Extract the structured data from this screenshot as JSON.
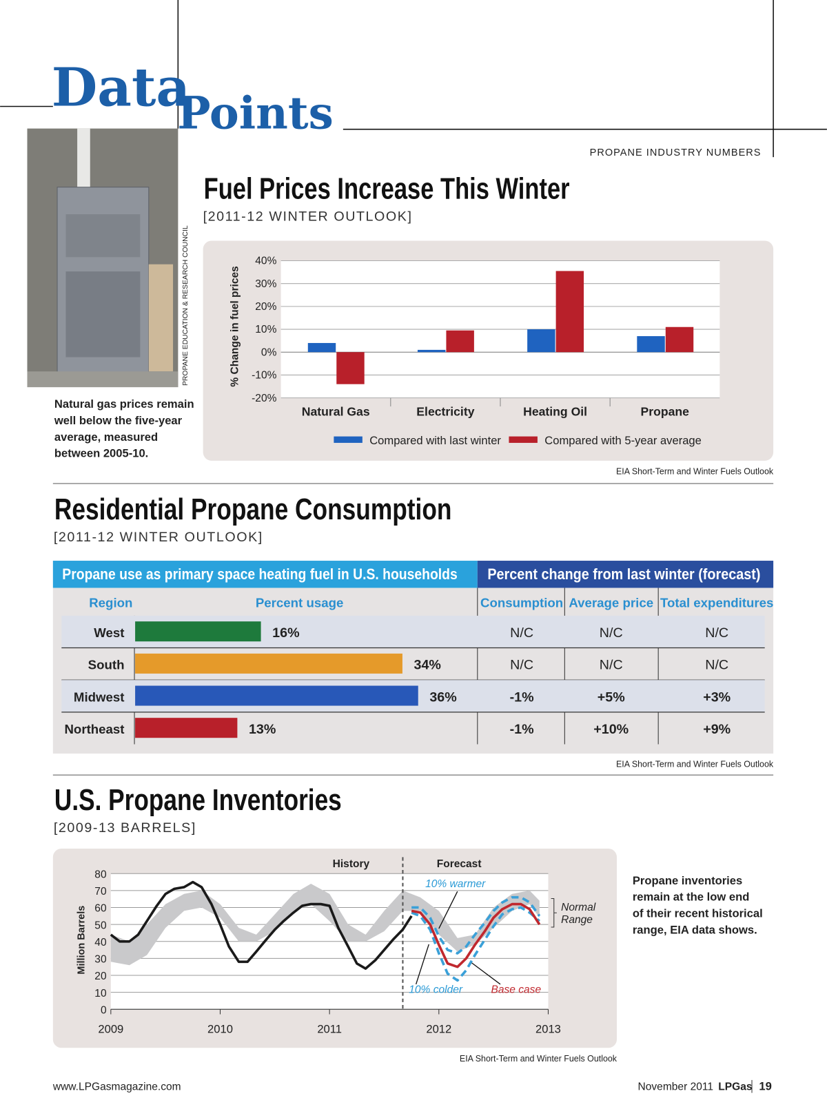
{
  "header": {
    "title_left": "Data",
    "title_right": "Points",
    "kicker": "PROPANE INDUSTRY NUMBERS"
  },
  "photo": {
    "credit": "PROPANE EDUCATION & RESEARCH COUNCIL",
    "caption": [
      "Natural gas prices remain",
      "well below the five-year",
      "average, measured",
      "between 2005-10."
    ]
  },
  "chart_data": [
    {
      "type": "bar",
      "title": "Fuel Prices Increase This Winter",
      "subtitle": "[2011-12 WINTER OUTLOOK]",
      "ylabel": "% Change in fuel prices",
      "categories": [
        "Natural Gas",
        "Electricity",
        "Heating Oil",
        "Propane"
      ],
      "series": [
        {
          "name": "Compared with last winter",
          "color": "#1f63c0",
          "values": [
            4,
            1,
            10,
            7
          ]
        },
        {
          "name": "Compared with 5-year average",
          "color": "#b8202a",
          "values": [
            -14,
            9.5,
            35.5,
            11
          ]
        }
      ],
      "ylim": [
        -20,
        40
      ],
      "yticks": [
        {
          "value": -20,
          "label": "-20%"
        },
        {
          "value": -10,
          "label": "-10%"
        },
        {
          "value": 0,
          "label": "0%"
        },
        {
          "value": 10,
          "label": "10%"
        },
        {
          "value": 20,
          "label": "20%"
        },
        {
          "value": 30,
          "label": "30%"
        },
        {
          "value": 40,
          "label": "40%"
        }
      ],
      "grid": true,
      "legend": "bottom",
      "source": "EIA Short-Term and Winter Fuels Outlook"
    },
    {
      "type": "line",
      "title": "U.S. Propane Inventories",
      "subtitle": "[2009-13 BARRELS]",
      "ylabel": "Million Barrels",
      "xlim": [
        2009,
        2013
      ],
      "xticks": [
        2009,
        2010,
        2011,
        2012,
        2013
      ],
      "ylim": [
        0,
        80
      ],
      "yticks": [
        0,
        10,
        20,
        30,
        40,
        50,
        60,
        70,
        80
      ],
      "grid": true,
      "divider_x": 2011.67,
      "annotations": {
        "history": "History",
        "forecast": "Forecast",
        "normal_range": [
          "Normal",
          "Range"
        ]
      },
      "band": {
        "name": "Normal Range",
        "color": "#c9c9cb",
        "x": [
          2009,
          2009.17,
          2009.33,
          2009.5,
          2009.67,
          2009.83,
          2010,
          2010.17,
          2010.33,
          2010.5,
          2010.67,
          2010.83,
          2011,
          2011.17,
          2011.33,
          2011.5,
          2011.67,
          2011.83,
          2012,
          2012.17,
          2012.33,
          2012.5,
          2012.67,
          2012.83,
          2012.92
        ],
        "lower": [
          28,
          26,
          32,
          48,
          58,
          60,
          54,
          40,
          40,
          46,
          58,
          62,
          52,
          40,
          40,
          46,
          58,
          58,
          44,
          34,
          38,
          48,
          58,
          62,
          54
        ],
        "upper": [
          44,
          40,
          50,
          62,
          68,
          70,
          62,
          48,
          44,
          56,
          68,
          74,
          68,
          50,
          44,
          58,
          70,
          66,
          58,
          42,
          44,
          60,
          68,
          70,
          64
        ]
      },
      "series": [
        {
          "name": "History",
          "color": "#1a1a1a",
          "dash": false,
          "x": [
            2009,
            2009.08,
            2009.17,
            2009.25,
            2009.33,
            2009.42,
            2009.5,
            2009.58,
            2009.67,
            2009.75,
            2009.83,
            2009.92,
            2010,
            2010.08,
            2010.17,
            2010.25,
            2010.33,
            2010.42,
            2010.5,
            2010.58,
            2010.67,
            2010.75,
            2010.83,
            2010.92,
            2011,
            2011.08,
            2011.17,
            2011.25,
            2011.33,
            2011.42,
            2011.5,
            2011.58,
            2011.67,
            2011.75
          ],
          "values": [
            44,
            40,
            40,
            44,
            52,
            61,
            68,
            71,
            72,
            75,
            72,
            62,
            50,
            37,
            28,
            28,
            34,
            41,
            47,
            52,
            57,
            61,
            62,
            62,
            61,
            48,
            37,
            27,
            24,
            29,
            35,
            41,
            47,
            55
          ]
        },
        {
          "name": "10% warmer",
          "color": "#3aa0d8",
          "dash": true,
          "x": [
            2011.75,
            2011.83,
            2011.92,
            2012,
            2012.08,
            2012.17,
            2012.25,
            2012.33,
            2012.42,
            2012.5,
            2012.58,
            2012.67,
            2012.75,
            2012.83,
            2012.92
          ],
          "values": [
            60,
            60,
            54,
            43,
            35,
            33,
            37,
            44,
            51,
            58,
            63,
            66,
            66,
            63,
            55
          ]
        },
        {
          "name": "10% colder",
          "color": "#3aa0d8",
          "dash": true,
          "x": [
            2011.75,
            2011.83,
            2011.92,
            2012,
            2012.08,
            2012.17,
            2012.25,
            2012.33,
            2012.42,
            2012.5,
            2012.58,
            2012.67,
            2012.75,
            2012.83,
            2012.92
          ],
          "values": [
            57,
            55,
            47,
            33,
            21,
            17,
            23,
            32,
            41,
            49,
            56,
            59,
            60,
            57,
            52
          ]
        },
        {
          "name": "Base case",
          "color": "#c0282e",
          "dash": false,
          "x": [
            2011.75,
            2011.83,
            2011.92,
            2012,
            2012.08,
            2012.17,
            2012.25,
            2012.33,
            2012.42,
            2012.5,
            2012.58,
            2012.67,
            2012.75,
            2012.83,
            2012.92
          ],
          "values": [
            58,
            57,
            50,
            38,
            27,
            25,
            30,
            38,
            46,
            54,
            59,
            62,
            62,
            59,
            50
          ]
        }
      ],
      "source": "EIA Short-Term and Winter Fuels Outlook"
    }
  ],
  "consumption": {
    "title": "Residential Propane Consumption",
    "subtitle": "[2011-12 WINTER OUTLOOK]",
    "group_headers": [
      "Propane use as primary space heating fuel in U.S. households",
      "Percent change from last winter (forecast)"
    ],
    "columns": [
      "Region",
      "Percent usage",
      "Consumption",
      "Average price",
      "Total expenditures"
    ],
    "rows": [
      {
        "region": "West",
        "usage": 16,
        "usage_label": "16%",
        "color": "#1e7a3c",
        "changes": [
          "N/C",
          "N/C",
          "N/C"
        ]
      },
      {
        "region": "South",
        "usage": 34,
        "usage_label": "34%",
        "color": "#e59a2a",
        "changes": [
          "N/C",
          "N/C",
          "N/C"
        ]
      },
      {
        "region": "Midwest",
        "usage": 36,
        "usage_label": "36%",
        "color": "#2858b8",
        "changes": [
          "-1%",
          "+5%",
          "+3%"
        ]
      },
      {
        "region": "Northeast",
        "usage": 13,
        "usage_label": "13%",
        "color": "#b8202a",
        "changes": [
          "-1%",
          "+10%",
          "+9%"
        ]
      }
    ],
    "source": "EIA Short-Term and Winter Fuels Outlook"
  },
  "inventory_caption": [
    "Propane inventories",
    "remain at the low end",
    "of their recent historical",
    "range, EIA data shows."
  ],
  "footer": {
    "url": "www.LPGasmagazine.com",
    "date": "November 2011",
    "brand": "LPGas",
    "page": "19"
  }
}
